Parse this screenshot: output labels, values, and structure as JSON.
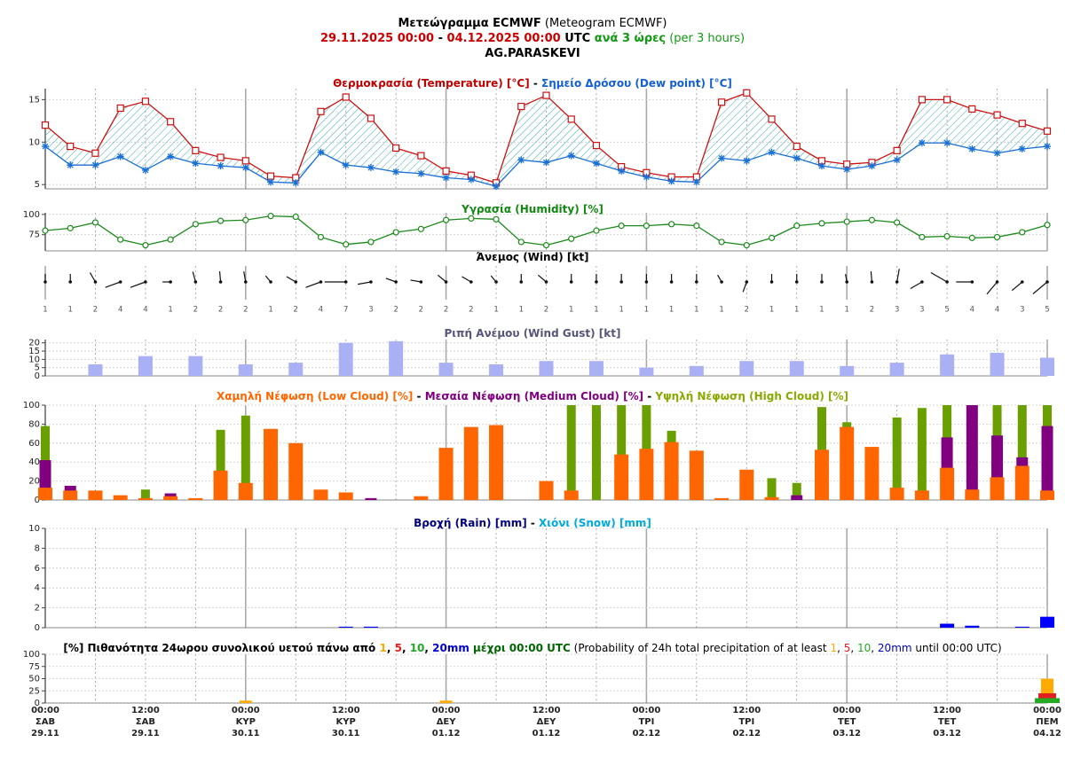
{
  "header": {
    "lines": [
      [
        {
          "text": "Μετεώγραμμα ECMWF",
          "color": "#000000",
          "bold": true
        },
        {
          "text": " (Meteogram ECMWF)",
          "color": "#000000",
          "bold": false
        }
      ],
      [
        {
          "text": "29.11.2025 00:00",
          "color": "#cc0000",
          "bold": true
        },
        {
          "text": " - ",
          "color": "#000000",
          "bold": true
        },
        {
          "text": "04.12.2025 00:00",
          "color": "#cc0000",
          "bold": true
        },
        {
          "text": " UTC",
          "color": "#000000",
          "bold": true
        },
        {
          "text": " ανά 3 ώρες",
          "color": "#119911",
          "bold": true
        },
        {
          "text": " (per 3 hours)",
          "color": "#119911",
          "bold": false
        }
      ],
      [
        {
          "text": "AG.PARASKEVI",
          "color": "#000000",
          "bold": true
        }
      ]
    ]
  },
  "time_axis": {
    "categories": [
      {
        "time": "00:00",
        "day": "ΣΑΒ",
        "date": "29.11"
      },
      null,
      null,
      null,
      {
        "time": "12:00",
        "day": "ΣΑΒ",
        "date": "29.11"
      },
      null,
      null,
      null,
      {
        "time": "00:00",
        "day": "ΚΥΡ",
        "date": "30.11"
      },
      null,
      null,
      null,
      {
        "time": "12:00",
        "day": "ΚΥΡ",
        "date": "30.11"
      },
      null,
      null,
      null,
      {
        "time": "00:00",
        "day": "ΔΕΥ",
        "date": "01.12"
      },
      null,
      null,
      null,
      {
        "time": "12:00",
        "day": "ΔΕΥ",
        "date": "01.12"
      },
      null,
      null,
      null,
      {
        "time": "00:00",
        "day": "ΤΡΙ",
        "date": "02.12"
      },
      null,
      null,
      null,
      {
        "time": "12:00",
        "day": "ΤΡΙ",
        "date": "02.12"
      },
      null,
      null,
      null,
      {
        "time": "00:00",
        "day": "ΤΕΤ",
        "date": "03.12"
      },
      null,
      null,
      null,
      {
        "time": "12:00",
        "day": "ΤΕΤ",
        "date": "03.12"
      },
      null,
      null,
      null,
      {
        "time": "00:00",
        "day": "ΠΕΜ",
        "date": "04.12"
      }
    ]
  },
  "chart_data": [
    {
      "type": "line",
      "title_parts": [
        {
          "text": "Θερμοκρασία (Temperature) [°C]",
          "color": "#c00000",
          "bold": true
        },
        {
          "text": " - ",
          "color": "#000000",
          "bold": true
        },
        {
          "text": "Σημείο Δρόσου (Dew point) [°C]",
          "color": "#1560d0",
          "bold": true
        }
      ],
      "ylim": [
        4.5,
        16.5
      ],
      "yticks": [
        5,
        10,
        15
      ],
      "grid": true,
      "fill_between": true,
      "series": [
        {
          "color": "#cc1111",
          "marker": "square",
          "values": [
            12.0,
            9.5,
            8.7,
            14.0,
            14.8,
            12.4,
            9.0,
            8.2,
            7.8,
            6.0,
            5.8,
            13.6,
            15.3,
            12.8,
            9.3,
            8.4,
            6.6,
            6.1,
            5.2,
            14.2,
            15.5,
            12.7,
            9.6,
            7.1,
            6.4,
            5.9,
            5.9,
            14.7,
            15.8,
            12.7,
            9.5,
            7.8,
            7.4,
            7.6,
            9.0,
            15.0,
            15.0,
            13.9,
            13.2,
            12.2,
            11.3
          ]
        },
        {
          "color": "#1a6fd6",
          "marker": "star",
          "values": [
            9.5,
            7.3,
            7.3,
            8.3,
            6.7,
            8.3,
            7.5,
            7.2,
            7.0,
            5.3,
            5.2,
            8.8,
            7.3,
            7.0,
            6.5,
            6.3,
            5.8,
            5.6,
            4.8,
            7.9,
            7.6,
            8.4,
            7.5,
            6.6,
            5.9,
            5.4,
            5.3,
            8.1,
            7.8,
            8.8,
            8.1,
            7.2,
            6.8,
            7.2,
            7.9,
            9.9,
            9.9,
            9.2,
            8.7,
            9.2,
            9.5
          ]
        }
      ]
    },
    {
      "type": "line",
      "title_parts": [
        {
          "text": "Υγρασία (Humidity) [%]",
          "color": "#118811",
          "bold": true
        }
      ],
      "ylim": [
        55,
        102
      ],
      "yticks": [
        75,
        100
      ],
      "grid": true,
      "fill_between": false,
      "series": [
        {
          "color": "#1a8a1a",
          "marker": "circle",
          "values": [
            80,
            83,
            90,
            69,
            62,
            69,
            88,
            92,
            93,
            98,
            97,
            72,
            63,
            66,
            78,
            82,
            93,
            95,
            94,
            66,
            62,
            70,
            80,
            86,
            86,
            88,
            86,
            66,
            62,
            71,
            86,
            89,
            91,
            93,
            90,
            72,
            73,
            71,
            72,
            78,
            87
          ]
        }
      ]
    },
    {
      "type": "wind",
      "title_parts": [
        {
          "text": "Άνεμος (Wind) [kt]",
          "color": "#000000",
          "bold": true
        }
      ],
      "values": [
        1,
        1,
        2,
        4,
        4,
        1,
        2,
        2,
        2,
        1,
        2,
        4,
        7,
        3,
        2,
        2,
        2,
        2,
        1,
        1,
        2,
        1,
        1,
        1,
        1,
        1,
        1,
        1,
        2,
        1,
        1,
        1,
        1,
        2,
        3,
        3,
        5,
        4,
        4,
        3,
        5
      ],
      "direction": [
        0,
        0,
        330,
        250,
        250,
        270,
        345,
        355,
        350,
        320,
        300,
        250,
        270,
        260,
        290,
        280,
        310,
        300,
        320,
        0,
        310,
        0,
        0,
        0,
        0,
        0,
        0,
        330,
        200,
        0,
        0,
        0,
        350,
        355,
        10,
        240,
        300,
        270,
        220,
        230,
        230
      ]
    },
    {
      "type": "bar",
      "title_parts": [
        {
          "text": "Ριπή Ανέμου (Wind Gust) [kt]",
          "color": "#55557a",
          "bold": true
        }
      ],
      "ylim": [
        0,
        22
      ],
      "yticks": [
        0,
        5,
        10,
        15,
        20
      ],
      "grid": true,
      "order": "forward",
      "series": [
        {
          "color": "#aab0f4",
          "values": [
            null,
            null,
            7,
            null,
            12,
            null,
            12,
            null,
            7,
            null,
            8,
            null,
            20,
            null,
            21,
            null,
            8,
            null,
            7,
            null,
            9,
            null,
            9,
            null,
            5,
            null,
            6,
            null,
            9,
            null,
            9,
            null,
            6,
            null,
            8,
            null,
            13,
            null,
            14,
            null,
            11
          ]
        }
      ]
    },
    {
      "type": "bar",
      "title_parts": [
        {
          "text": "Χαμηλή Νέφωση (Low Cloud) [%]",
          "color": "#ff6600",
          "bold": true
        },
        {
          "text": " - ",
          "color": "#000000",
          "bold": true
        },
        {
          "text": "Μεσαία Νέφωση (Medium Cloud) [%]",
          "color": "#800080",
          "bold": true
        },
        {
          "text": " - ",
          "color": "#000000",
          "bold": true
        },
        {
          "text": "Υψηλή Νέφωση (High Cloud) [%]",
          "color": "#88aa00",
          "bold": true
        }
      ],
      "ylim": [
        0,
        100
      ],
      "yticks": [
        0,
        20,
        40,
        60,
        80,
        100
      ],
      "grid": true,
      "order": "reverse",
      "series": [
        {
          "color": "#ff6600",
          "values": [
            13,
            10,
            10,
            5,
            2,
            4,
            2,
            31,
            18,
            75,
            60,
            11,
            8,
            0,
            0,
            4,
            55,
            77,
            79,
            0,
            20,
            10,
            0,
            48,
            54,
            61,
            52,
            2,
            32,
            3,
            0,
            53,
            77,
            56,
            13,
            10,
            34,
            11,
            24,
            36,
            10
          ]
        },
        {
          "color": "#800080",
          "values": [
            42,
            15,
            0,
            0,
            0,
            7,
            0,
            0,
            0,
            0,
            0,
            0,
            0,
            2,
            0,
            0,
            0,
            0,
            0,
            0,
            0,
            0,
            0,
            0,
            0,
            0,
            0,
            0,
            0,
            0,
            5,
            0,
            0,
            0,
            0,
            0,
            66,
            100,
            68,
            45,
            78
          ]
        },
        {
          "color": "#6a9f00",
          "values": [
            78,
            0,
            0,
            0,
            11,
            0,
            0,
            74,
            89,
            0,
            0,
            0,
            0,
            0,
            0,
            0,
            0,
            0,
            0,
            0,
            0,
            100,
            100,
            100,
            100,
            73,
            0,
            0,
            0,
            23,
            18,
            98,
            82,
            0,
            87,
            97,
            100,
            100,
            100,
            100,
            100
          ]
        }
      ]
    },
    {
      "type": "bar",
      "title_parts": [
        {
          "text": "Βροχή (Rain) [mm]",
          "color": "#000080",
          "bold": true
        },
        {
          "text": " - ",
          "color": "#000000",
          "bold": true
        },
        {
          "text": "Χιόνι (Snow) [mm]",
          "color": "#00aadd",
          "bold": true
        }
      ],
      "ylim": [
        0,
        10
      ],
      "yticks": [
        0,
        2,
        4,
        6,
        8,
        10
      ],
      "grid": true,
      "order": "forward",
      "series": [
        {
          "color": "#0000ff",
          "values": [
            0,
            0,
            0,
            0,
            0,
            0,
            0,
            0,
            0,
            0,
            0,
            0,
            0.1,
            0.1,
            0,
            0,
            0,
            0,
            0,
            0,
            0,
            0,
            0,
            0,
            0,
            0,
            0,
            0,
            0,
            0,
            0,
            0,
            0,
            0,
            0,
            0,
            0.4,
            0.2,
            0,
            0.1,
            1.1
          ]
        },
        {
          "color": "#00aadd",
          "values": [
            0,
            0,
            0,
            0,
            0,
            0,
            0,
            0,
            0,
            0,
            0,
            0,
            0,
            0,
            0,
            0,
            0,
            0,
            0,
            0,
            0,
            0,
            0,
            0,
            0,
            0,
            0,
            0,
            0,
            0,
            0,
            0,
            0,
            0,
            0,
            0,
            0,
            0,
            0,
            0,
            0
          ]
        }
      ]
    },
    {
      "type": "bar",
      "title_parts": [
        {
          "text": "[%] Πιθανότητα 24ωρου συνολικού υετού πάνω από ",
          "color": "#000000",
          "bold": true
        },
        {
          "text": "1",
          "color": "#ffaa00",
          "bold": true
        },
        {
          "text": ", ",
          "color": "#000000",
          "bold": true
        },
        {
          "text": "5",
          "color": "#e02020",
          "bold": true
        },
        {
          "text": ", ",
          "color": "#000000",
          "bold": true
        },
        {
          "text": "10",
          "color": "#22aa22",
          "bold": true
        },
        {
          "text": ", ",
          "color": "#000000",
          "bold": true
        },
        {
          "text": "20mm",
          "color": "#0000cc",
          "bold": true
        },
        {
          "text": " μέχρι 00:00 UTC",
          "color": "#006600",
          "bold": true
        },
        {
          "text": " (Probability of 24h total precipitation of at least ",
          "color": "#000000",
          "bold": false
        },
        {
          "text": "1",
          "color": "#ffaa00",
          "bold": false
        },
        {
          "text": ", ",
          "color": "#000000",
          "bold": false
        },
        {
          "text": "5",
          "color": "#e02020",
          "bold": false
        },
        {
          "text": ", ",
          "color": "#000000",
          "bold": false
        },
        {
          "text": "10",
          "color": "#22aa22",
          "bold": false
        },
        {
          "text": ", ",
          "color": "#000000",
          "bold": false
        },
        {
          "text": "20mm",
          "color": "#0000cc",
          "bold": false
        },
        {
          "text": " until 00:00 UTC)",
          "color": "#000000",
          "bold": false
        }
      ],
      "ylim": [
        0,
        100
      ],
      "yticks": [
        0,
        25,
        50,
        75,
        100
      ],
      "grid": true,
      "order": "forward",
      "series": [
        {
          "color": "#ffaa00",
          "values": [
            0,
            null,
            null,
            null,
            null,
            null,
            null,
            null,
            5,
            null,
            null,
            null,
            null,
            null,
            null,
            null,
            5,
            null,
            null,
            null,
            null,
            null,
            null,
            null,
            0,
            null,
            null,
            null,
            null,
            null,
            null,
            null,
            0,
            null,
            null,
            null,
            null,
            null,
            null,
            null,
            50
          ]
        },
        {
          "color": "#e02020",
          "values": [
            0,
            null,
            null,
            null,
            null,
            null,
            null,
            null,
            0,
            null,
            null,
            null,
            null,
            null,
            null,
            null,
            0,
            null,
            null,
            null,
            null,
            null,
            null,
            null,
            0,
            null,
            null,
            null,
            null,
            null,
            null,
            null,
            0,
            null,
            null,
            null,
            null,
            null,
            null,
            null,
            20
          ]
        },
        {
          "color": "#22aa22",
          "values": [
            0,
            null,
            null,
            null,
            null,
            null,
            null,
            null,
            0,
            null,
            null,
            null,
            null,
            null,
            null,
            null,
            0,
            null,
            null,
            null,
            null,
            null,
            null,
            null,
            0,
            null,
            null,
            null,
            null,
            null,
            null,
            null,
            0,
            null,
            null,
            null,
            null,
            null,
            null,
            null,
            10
          ]
        },
        {
          "color": "#0000cc",
          "values": [
            0,
            null,
            null,
            null,
            null,
            null,
            null,
            null,
            0,
            null,
            null,
            null,
            null,
            null,
            null,
            null,
            0,
            null,
            null,
            null,
            null,
            null,
            null,
            null,
            0,
            null,
            null,
            null,
            null,
            null,
            null,
            null,
            0,
            null,
            null,
            null,
            null,
            null,
            null,
            null,
            0
          ]
        }
      ]
    }
  ]
}
